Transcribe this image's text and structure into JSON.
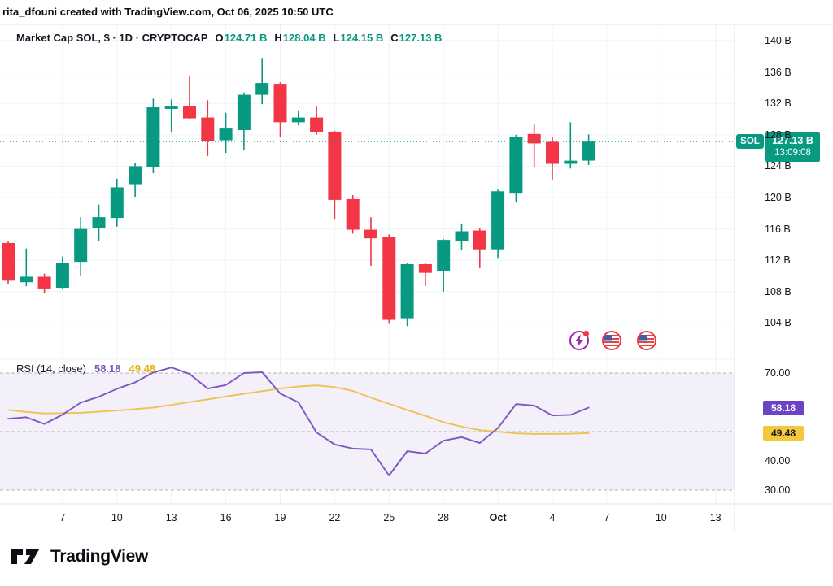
{
  "header": {
    "attribution": "rita_dfouni created with TradingView.com, Oct 06, 2025 10:50 UTC"
  },
  "legend": {
    "title": "Market Cap SOL, $ · 1D · CRYPTOCAP",
    "ohlc": [
      {
        "label": "O",
        "value": "124.71 B"
      },
      {
        "label": "H",
        "value": "128.04 B"
      },
      {
        "label": "L",
        "value": "124.15 B"
      },
      {
        "label": "C",
        "value": "127.13 B"
      }
    ]
  },
  "rsi_legend": {
    "title": "RSI (14, close)",
    "rsi_value": "58.18",
    "ma_value": "49.48"
  },
  "price_scale": {
    "labels": [
      "140 B",
      "136 B",
      "132 B",
      "128 B",
      "124 B",
      "120 B",
      "116 B",
      "112 B",
      "108 B",
      "104 B"
    ],
    "values": [
      140,
      136,
      132,
      128,
      124,
      120,
      116,
      112,
      108,
      104
    ],
    "badge": {
      "symbol": "SOL",
      "price": "127.13 B",
      "countdown": "13:09:08"
    }
  },
  "rsi_scale": {
    "labels": [
      "70.00",
      "40.00",
      "30.00"
    ],
    "values": [
      70,
      40,
      30
    ],
    "rsi_badge": "58.18",
    "ma_badge": "49.48"
  },
  "time_scale": {
    "labels": [
      "7",
      "10",
      "13",
      "16",
      "19",
      "22",
      "25",
      "28",
      "Oct",
      "4",
      "7",
      "10",
      "13"
    ],
    "candle_indices": [
      3,
      6,
      9,
      12,
      15,
      18,
      21,
      24,
      27,
      30,
      33,
      36,
      39
    ]
  },
  "footer": {
    "brand": "TradingView"
  },
  "colors": {
    "up": "#089981",
    "down": "#F23645",
    "text": "#131722",
    "grid": "#EFF2F8",
    "rsi_line": "#7E57C2",
    "rsi_ma": "#EFC251",
    "rsi_band": "rgba(126,87,194,0.09)",
    "level_dash": "#B2B5BE",
    "close_line": "#089981",
    "separator": "#E0E3EB",
    "badge_purple": "#6C43C4",
    "badge_yellow": "#F5C73B"
  },
  "chart_data": {
    "type": "candlestick",
    "title": "Market Cap SOL, $ · 1D · CRYPTOCAP",
    "symbol": "CRYPTOCAP SOL",
    "timeframe": "1D",
    "y_unit": "billions $",
    "ylim": [
      102,
      141
    ],
    "ohlc_current": {
      "open": 124.71,
      "high": 128.04,
      "low": 124.15,
      "close": 127.13
    },
    "countdown": "13:09:08",
    "x_tick_labels": [
      "7",
      "10",
      "13",
      "16",
      "19",
      "22",
      "25",
      "28",
      "Oct",
      "4",
      "7",
      "10",
      "13"
    ],
    "y_tick_values": [
      140,
      136,
      132,
      128,
      124,
      120,
      116,
      112,
      108,
      104
    ],
    "candles": [
      {
        "date": "Sep 4",
        "o": 114.2,
        "h": 114.4,
        "l": 108.9,
        "c": 109.4
      },
      {
        "date": "Sep 5",
        "o": 109.2,
        "h": 113.5,
        "l": 108.7,
        "c": 109.9
      },
      {
        "date": "Sep 6",
        "o": 109.9,
        "h": 110.3,
        "l": 107.8,
        "c": 108.4
      },
      {
        "date": "Sep 7",
        "o": 108.5,
        "h": 112.5,
        "l": 108.3,
        "c": 111.7
      },
      {
        "date": "Sep 8",
        "o": 111.8,
        "h": 117.5,
        "l": 110.0,
        "c": 116.0
      },
      {
        "date": "Sep 9",
        "o": 116.1,
        "h": 119.1,
        "l": 114.4,
        "c": 117.5
      },
      {
        "date": "Sep 10",
        "o": 117.4,
        "h": 122.4,
        "l": 116.3,
        "c": 121.3
      },
      {
        "date": "Sep 11",
        "o": 121.6,
        "h": 124.4,
        "l": 120.1,
        "c": 124.0
      },
      {
        "date": "Sep 12",
        "o": 123.9,
        "h": 132.6,
        "l": 123.1,
        "c": 131.5
      },
      {
        "date": "Sep 13",
        "o": 131.3,
        "h": 132.5,
        "l": 128.3,
        "c": 131.6
      },
      {
        "date": "Sep 14",
        "o": 131.7,
        "h": 135.5,
        "l": 130.0,
        "c": 130.1
      },
      {
        "date": "Sep 15",
        "o": 130.2,
        "h": 132.4,
        "l": 125.3,
        "c": 127.2
      },
      {
        "date": "Sep 16",
        "o": 127.3,
        "h": 130.8,
        "l": 125.7,
        "c": 128.8
      },
      {
        "date": "Sep 17",
        "o": 128.6,
        "h": 133.4,
        "l": 126.1,
        "c": 133.1
      },
      {
        "date": "Sep 18",
        "o": 133.1,
        "h": 137.8,
        "l": 131.9,
        "c": 134.6
      },
      {
        "date": "Sep 19",
        "o": 134.5,
        "h": 134.7,
        "l": 127.7,
        "c": 129.6
      },
      {
        "date": "Sep 20",
        "o": 129.6,
        "h": 131.1,
        "l": 129.2,
        "c": 130.2
      },
      {
        "date": "Sep 21",
        "o": 130.2,
        "h": 131.6,
        "l": 128.0,
        "c": 128.3
      },
      {
        "date": "Sep 22",
        "o": 128.4,
        "h": 128.5,
        "l": 117.2,
        "c": 119.7
      },
      {
        "date": "Sep 23",
        "o": 119.8,
        "h": 120.3,
        "l": 115.4,
        "c": 115.9
      },
      {
        "date": "Sep 24",
        "o": 115.9,
        "h": 117.5,
        "l": 111.3,
        "c": 114.8
      },
      {
        "date": "Sep 25",
        "o": 115.0,
        "h": 115.3,
        "l": 103.9,
        "c": 104.4
      },
      {
        "date": "Sep 26",
        "o": 104.6,
        "h": 111.6,
        "l": 103.6,
        "c": 111.5
      },
      {
        "date": "Sep 27",
        "o": 111.5,
        "h": 111.7,
        "l": 108.7,
        "c": 110.4
      },
      {
        "date": "Sep 28",
        "o": 110.6,
        "h": 114.7,
        "l": 108.0,
        "c": 114.6
      },
      {
        "date": "Sep 29",
        "o": 114.4,
        "h": 116.7,
        "l": 113.3,
        "c": 115.7
      },
      {
        "date": "Sep 30",
        "o": 115.8,
        "h": 116.1,
        "l": 111.0,
        "c": 113.4
      },
      {
        "date": "Oct 1",
        "o": 113.4,
        "h": 121.0,
        "l": 112.2,
        "c": 120.8
      },
      {
        "date": "Oct 2",
        "o": 120.5,
        "h": 128.0,
        "l": 119.4,
        "c": 127.7
      },
      {
        "date": "Oct 3",
        "o": 128.1,
        "h": 129.4,
        "l": 123.9,
        "c": 126.9
      },
      {
        "date": "Oct 4",
        "o": 127.1,
        "h": 127.7,
        "l": 122.3,
        "c": 124.3
      },
      {
        "date": "Oct 5",
        "o": 124.3,
        "h": 129.6,
        "l": 123.7,
        "c": 124.7
      },
      {
        "date": "Oct 6",
        "o": 124.71,
        "h": 128.04,
        "l": 124.15,
        "c": 127.13
      }
    ],
    "rsi": {
      "period": 14,
      "source": "close",
      "current": 58.18,
      "ma_current": 49.48,
      "levels": [
        70,
        50,
        30
      ],
      "ylim": [
        25,
        75
      ],
      "values": [
        54.4,
        54.9,
        52.6,
        55.8,
        59.9,
        61.9,
        64.6,
        66.8,
        70.2,
        71.9,
        69.7,
        64.7,
        65.9,
        70.0,
        70.3,
        63.0,
        60.0,
        49.7,
        45.6,
        44.2,
        43.9,
        35.0,
        43.3,
        42.5,
        46.9,
        48.1,
        46.1,
        51.2,
        59.4,
        58.9,
        55.5,
        55.7,
        58.18
      ],
      "ma_values": [
        57.4,
        56.7,
        56.2,
        56.3,
        56.4,
        56.8,
        57.2,
        57.7,
        58.2,
        59.1,
        60.1,
        61.0,
        62.0,
        62.9,
        63.8,
        64.7,
        65.4,
        65.8,
        65.2,
        63.9,
        61.6,
        59.5,
        57.4,
        55.4,
        53.2,
        51.7,
        50.5,
        50.0,
        49.4,
        49.2,
        49.2,
        49.3,
        49.48
      ]
    }
  }
}
